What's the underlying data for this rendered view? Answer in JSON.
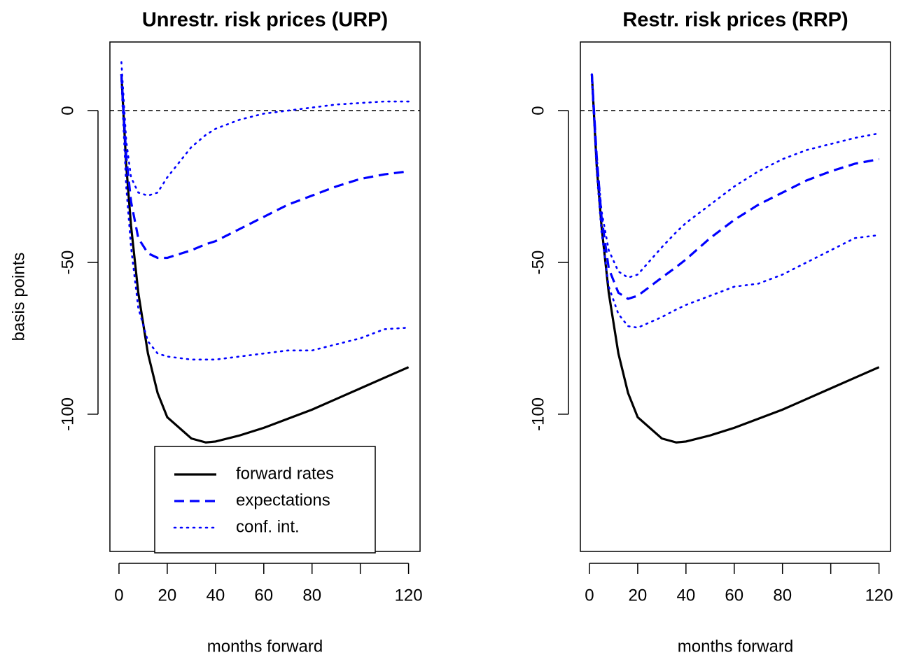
{
  "chart_data": [
    {
      "type": "line",
      "title": "Unrestr. risk prices (URP)",
      "xlabel": "months forward",
      "ylabel": "basis points",
      "x": [
        1,
        3,
        5,
        8,
        12,
        16,
        20,
        30,
        36,
        40,
        50,
        60,
        70,
        80,
        90,
        100,
        110,
        120
      ],
      "series": [
        {
          "name": "forward rates",
          "color": "#000000",
          "style": "solid",
          "values": [
            12,
            -18,
            -38,
            -60,
            -80,
            -93,
            -101,
            -108,
            -109.3,
            -109,
            -107,
            -104.5,
            -101.5,
            -98.5,
            -95,
            -91.5,
            -88,
            -84.5
          ]
        },
        {
          "name": "expectations",
          "color": "#0000ff",
          "style": "dashed",
          "values": [
            12,
            -15,
            -30,
            -42,
            -47,
            -48.5,
            -48.5,
            -46,
            -44,
            -43,
            -39,
            -35,
            -31,
            -28,
            -25,
            -22.5,
            -21,
            -20
          ]
        },
        {
          "name": "conf. int.",
          "color": "#0000ff",
          "style": "dotted",
          "values": [
            16,
            -10,
            -22,
            -27,
            -28,
            -27,
            -22,
            -12,
            -8,
            -6,
            -3,
            -1,
            0,
            1,
            2,
            2.5,
            3,
            3
          ]
        },
        {
          "color": "#0000ff",
          "style": "dotted",
          "values": [
            10,
            -25,
            -45,
            -65,
            -76,
            -80,
            -81,
            -82,
            -82,
            -82,
            -81,
            -80,
            -79,
            -79,
            -77,
            -75,
            -72,
            -71.5
          ]
        }
      ],
      "xlim": [
        -3.76,
        124.76
      ],
      "ylim": [
        -145.2,
        22.6
      ],
      "xticks": [
        0,
        20,
        40,
        60,
        80,
        120
      ],
      "xticks_unlabeled": [
        100
      ],
      "yticks": [
        0,
        -50,
        -100
      ],
      "hline": 0,
      "legend": "bottom"
    },
    {
      "type": "line",
      "title": "Restr. risk prices (RRP)",
      "xlabel": "months forward",
      "x": [
        1,
        3,
        5,
        8,
        12,
        16,
        20,
        30,
        36,
        40,
        50,
        60,
        70,
        80,
        90,
        100,
        110,
        120
      ],
      "series": [
        {
          "color": "#000000",
          "style": "solid",
          "values": [
            12,
            -18,
            -38,
            -60,
            -80,
            -93,
            -101,
            -108,
            -109.3,
            -109,
            -107,
            -104.5,
            -101.5,
            -98.5,
            -95,
            -91.5,
            -88,
            -84.5
          ]
        },
        {
          "color": "#0000ff",
          "style": "dashed",
          "values": [
            12,
            -15,
            -35,
            -52,
            -60,
            -62,
            -61,
            -55,
            -51.5,
            -49,
            -42,
            -36,
            -31,
            -27,
            -23,
            -20,
            -17.5,
            -16
          ]
        },
        {
          "color": "#0000ff",
          "style": "dotted",
          "values": [
            12,
            -15,
            -33,
            -46,
            -53,
            -55,
            -54,
            -45,
            -40,
            -37,
            -31,
            -25,
            -20,
            -16,
            -13,
            -11,
            -9,
            -7.5
          ]
        },
        {
          "color": "#0000ff",
          "style": "dotted",
          "values": [
            10,
            -20,
            -40,
            -58,
            -67,
            -71,
            -71.5,
            -68,
            -65.5,
            -64,
            -61,
            -58,
            -57,
            -54,
            -50,
            -46,
            -42,
            -41
          ]
        }
      ],
      "xlim": [
        -3.76,
        124.76
      ],
      "ylim": [
        -145.2,
        22.6
      ],
      "xticks": [
        0,
        20,
        40,
        60,
        80,
        120
      ],
      "xticks_unlabeled": [
        100
      ],
      "yticks": [
        0,
        -50,
        -100
      ],
      "hline": 0
    }
  ]
}
